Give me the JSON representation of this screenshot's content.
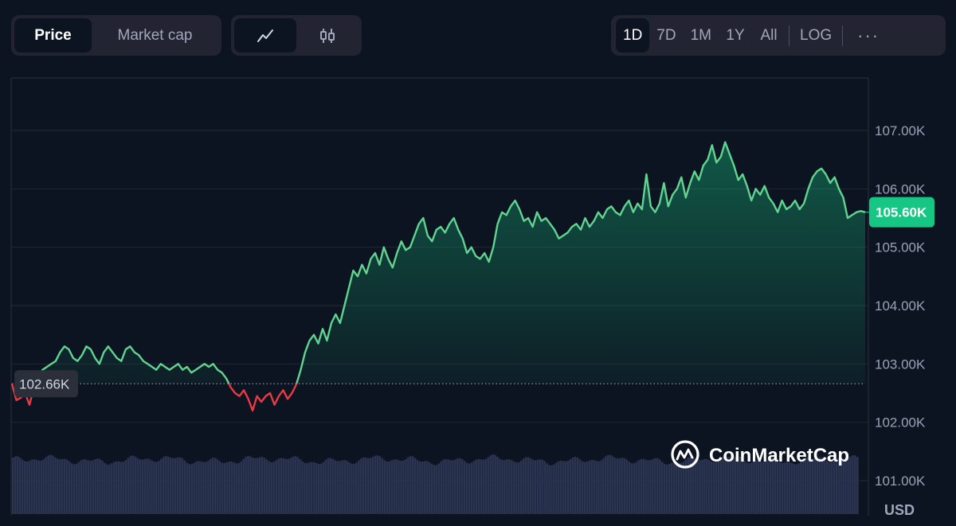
{
  "tabs": [
    {
      "label": "Price",
      "active": true
    },
    {
      "label": "Market cap",
      "active": false
    }
  ],
  "view_modes": [
    {
      "icon": "line-chart-icon",
      "active": true
    },
    {
      "icon": "candlestick-icon",
      "active": false
    }
  ],
  "ranges": [
    {
      "label": "1D",
      "active": true
    },
    {
      "label": "7D",
      "active": false
    },
    {
      "label": "1M",
      "active": false
    },
    {
      "label": "1Y",
      "active": false
    },
    {
      "label": "All",
      "active": false
    }
  ],
  "log_label": "LOG",
  "more_label": "···",
  "currency": "USD",
  "watermark": "CoinMarketCap",
  "colors": {
    "up": "#16c784",
    "down": "#ea3943",
    "line_up": "#61d490",
    "volume": "#2b3552",
    "badge": "#16c784"
  },
  "chart_data": {
    "type": "area",
    "y_ticks": [
      "107.00K",
      "106.00K",
      "105.00K",
      "104.00K",
      "103.00K",
      "102.00K",
      "101.00K"
    ],
    "ylim": [
      100400,
      107900
    ],
    "open_price": 102660,
    "open_label": "102.66K",
    "current_price": 105600,
    "current_label": "105.60K",
    "grid": true,
    "values": [
      102660,
      102380,
      102420,
      102500,
      102300,
      102600,
      102800,
      102900,
      102950,
      103000,
      103050,
      103200,
      103300,
      103250,
      103100,
      103050,
      103150,
      103300,
      103250,
      103100,
      103000,
      103200,
      103300,
      103200,
      103100,
      103050,
      103250,
      103300,
      103200,
      103150,
      103050,
      103000,
      102950,
      102900,
      103000,
      102950,
      102900,
      102950,
      103000,
      102900,
      102950,
      102850,
      102900,
      102950,
      103000,
      102950,
      103000,
      102900,
      102850,
      102750,
      102600,
      102500,
      102450,
      102550,
      102400,
      102200,
      102450,
      102350,
      102450,
      102500,
      102300,
      102450,
      102550,
      102400,
      102500,
      102650,
      102900,
      103200,
      103400,
      103500,
      103350,
      103600,
      103400,
      103700,
      103850,
      103700,
      104000,
      104300,
      104600,
      104500,
      104700,
      104550,
      104800,
      104900,
      104700,
      105000,
      104800,
      104650,
      104900,
      105100,
      104950,
      105000,
      105200,
      105400,
      105500,
      105200,
      105100,
      105300,
      105350,
      105250,
      105400,
      105500,
      105300,
      105150,
      104900,
      105000,
      104850,
      104800,
      104900,
      104750,
      105000,
      105400,
      105600,
      105550,
      105700,
      105800,
      105650,
      105450,
      105500,
      105350,
      105600,
      105450,
      105500,
      105400,
      105300,
      105150,
      105200,
      105250,
      105350,
      105400,
      105300,
      105500,
      105350,
      105450,
      105600,
      105500,
      105650,
      105700,
      105600,
      105550,
      105700,
      105800,
      105600,
      105750,
      105650,
      106250,
      105700,
      105600,
      105750,
      106100,
      105700,
      105900,
      106000,
      106200,
      105850,
      106100,
      106300,
      106150,
      106400,
      106500,
      106750,
      106450,
      106550,
      106800,
      106600,
      106400,
      106150,
      106250,
      106050,
      105800,
      106000,
      105900,
      106050,
      105850,
      105750,
      105600,
      105800,
      105650,
      105700,
      105800,
      105650,
      105750,
      106000,
      106200,
      106300,
      106350,
      106250,
      106100,
      106200,
      106000,
      105850,
      105500,
      105550,
      105600,
      105620,
      105600
    ]
  }
}
